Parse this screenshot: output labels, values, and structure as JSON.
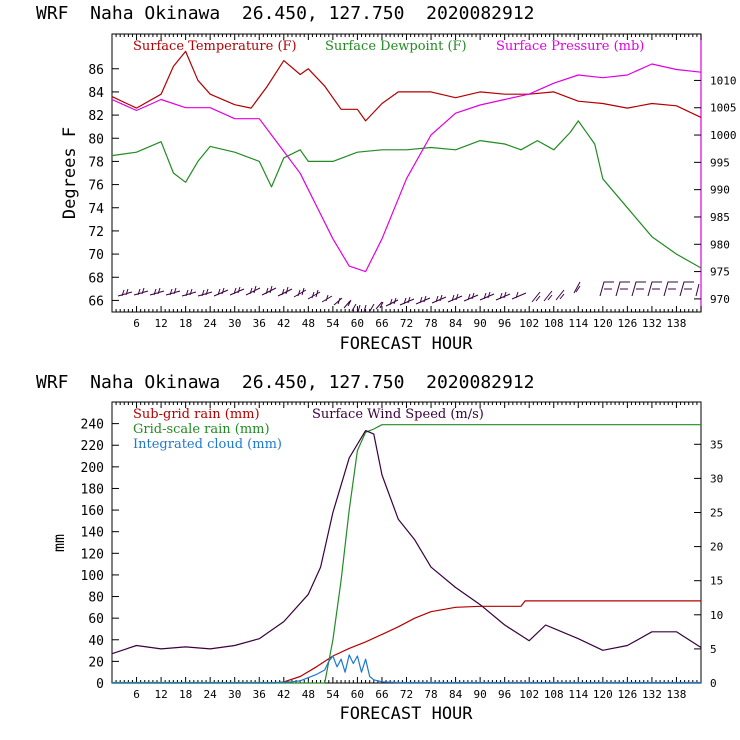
{
  "panels": [
    {
      "header": "WRF  Naha Okinawa  26.450, 127.750  2020082912",
      "chart_data": {
        "type": "line",
        "xlabel": "FORECAST HOUR",
        "ylabel": "Degrees F",
        "x_ticks": [
          "6",
          "12",
          "18",
          "24",
          "30",
          "36",
          "42",
          "48",
          "54",
          "60",
          "66",
          "72",
          "78",
          "84",
          "90",
          "96",
          "102",
          "108",
          "114",
          "120",
          "126",
          "132",
          "138"
        ],
        "xlim": [
          0,
          144
        ],
        "left_axis": {
          "ylim": [
            65,
            89
          ],
          "ticks": [
            "66",
            "68",
            "70",
            "72",
            "74",
            "76",
            "78",
            "80",
            "82",
            "84",
            "86"
          ]
        },
        "right_axis": {
          "ylim": [
            967.6,
            1018.5
          ],
          "label": "mb",
          "ticks": [
            "970",
            "975",
            "980",
            "985",
            "990",
            "995",
            "1000",
            "1005",
            "1010"
          ]
        },
        "series": [
          {
            "name": "Surface Temperature (F)",
            "axis": "left",
            "color": "#b20000",
            "points": [
              [
                0,
                83.6
              ],
              [
                6,
                82.6
              ],
              [
                12,
                83.8
              ],
              [
                15,
                86.2
              ],
              [
                18,
                87.5
              ],
              [
                21,
                85.0
              ],
              [
                24,
                83.8
              ],
              [
                30,
                82.9
              ],
              [
                34,
                82.6
              ],
              [
                38,
                84.5
              ],
              [
                42,
                86.7
              ],
              [
                46,
                85.5
              ],
              [
                48,
                86.0
              ],
              [
                52,
                84.5
              ],
              [
                56,
                82.5
              ],
              [
                60,
                82.5
              ],
              [
                62,
                81.5
              ],
              [
                66,
                83.0
              ],
              [
                70,
                84.0
              ],
              [
                78,
                84.0
              ],
              [
                84,
                83.5
              ],
              [
                90,
                84.0
              ],
              [
                96,
                83.8
              ],
              [
                102,
                83.8
              ],
              [
                108,
                84.0
              ],
              [
                114,
                83.2
              ],
              [
                120,
                83.0
              ],
              [
                126,
                82.6
              ],
              [
                132,
                83.0
              ],
              [
                138,
                82.8
              ],
              [
                144,
                81.8
              ]
            ]
          },
          {
            "name": "Surface Dewpoint (F)",
            "axis": "left",
            "color": "#228b22",
            "points": [
              [
                0,
                78.5
              ],
              [
                6,
                78.8
              ],
              [
                12,
                79.7
              ],
              [
                15,
                77.0
              ],
              [
                18,
                76.2
              ],
              [
                21,
                78.0
              ],
              [
                24,
                79.3
              ],
              [
                30,
                78.8
              ],
              [
                36,
                78.0
              ],
              [
                39,
                75.8
              ],
              [
                42,
                78.3
              ],
              [
                46,
                79.0
              ],
              [
                48,
                78.0
              ],
              [
                54,
                78.0
              ],
              [
                60,
                78.8
              ],
              [
                66,
                79.0
              ],
              [
                72,
                79.0
              ],
              [
                78,
                79.2
              ],
              [
                84,
                79.0
              ],
              [
                90,
                79.8
              ],
              [
                96,
                79.5
              ],
              [
                100,
                79.0
              ],
              [
                104,
                79.8
              ],
              [
                108,
                79.0
              ],
              [
                112,
                80.5
              ],
              [
                114,
                81.5
              ],
              [
                118,
                79.5
              ],
              [
                120,
                76.5
              ],
              [
                126,
                74.0
              ],
              [
                132,
                71.5
              ],
              [
                138,
                70.0
              ],
              [
                144,
                68.8
              ]
            ]
          },
          {
            "name": "Surface Pressure (mb)",
            "axis": "right",
            "color": "#e000e0",
            "points": [
              [
                0,
                1006.5
              ],
              [
                6,
                1004.5
              ],
              [
                12,
                1006.5
              ],
              [
                18,
                1005.0
              ],
              [
                24,
                1005.0
              ],
              [
                30,
                1003.0
              ],
              [
                36,
                1003.0
              ],
              [
                42,
                997.0
              ],
              [
                46,
                993.0
              ],
              [
                50,
                987.0
              ],
              [
                54,
                981.0
              ],
              [
                58,
                976.0
              ],
              [
                62,
                975.0
              ],
              [
                66,
                981.0
              ],
              [
                72,
                992.0
              ],
              [
                78,
                1000.0
              ],
              [
                84,
                1004.0
              ],
              [
                90,
                1005.5
              ],
              [
                96,
                1006.5
              ],
              [
                102,
                1007.5
              ],
              [
                108,
                1009.5
              ],
              [
                114,
                1011.0
              ],
              [
                120,
                1010.5
              ],
              [
                126,
                1011.0
              ],
              [
                132,
                1013.0
              ],
              [
                138,
                1012.0
              ],
              [
                144,
                1011.5
              ]
            ]
          }
        ]
      }
    },
    {
      "header": "WRF  Naha Okinawa  26.450, 127.750  2020082912",
      "chart_data": {
        "type": "line",
        "xlabel": "FORECAST HOUR",
        "ylabel": "mm",
        "x_ticks": [
          "6",
          "12",
          "18",
          "24",
          "30",
          "36",
          "42",
          "48",
          "54",
          "60",
          "66",
          "72",
          "78",
          "84",
          "90",
          "96",
          "102",
          "108",
          "114",
          "120",
          "126",
          "132",
          "138"
        ],
        "xlim": [
          0,
          144
        ],
        "left_axis": {
          "ylim": [
            0,
            260
          ],
          "ticks": [
            "0",
            "20",
            "40",
            "60",
            "80",
            "100",
            "120",
            "140",
            "160",
            "180",
            "200",
            "220",
            "240"
          ]
        },
        "right_axis": {
          "ylim": [
            0,
            41.2
          ],
          "label": "m/s",
          "ticks": [
            "0",
            "5",
            "10",
            "15",
            "20",
            "25",
            "30",
            "35"
          ]
        },
        "series": [
          {
            "name": "Sub-grid rain (mm)",
            "axis": "left",
            "color": "#b20000",
            "points": [
              [
                0,
                0
              ],
              [
                40,
                0
              ],
              [
                42,
                1
              ],
              [
                46,
                6
              ],
              [
                50,
                15
              ],
              [
                54,
                25
              ],
              [
                58,
                32
              ],
              [
                62,
                38
              ],
              [
                66,
                45
              ],
              [
                70,
                52
              ],
              [
                74,
                60
              ],
              [
                78,
                66
              ],
              [
                84,
                70
              ],
              [
                90,
                71
              ],
              [
                96,
                71
              ],
              [
                100,
                71
              ],
              [
                101,
                76
              ],
              [
                144,
                76
              ]
            ]
          },
          {
            "name": "Grid-scale rain (mm)",
            "axis": "left",
            "color": "#228b22",
            "points": [
              [
                0,
                0
              ],
              [
                52,
                0
              ],
              [
                54,
                40
              ],
              [
                56,
                95
              ],
              [
                58,
                160
              ],
              [
                60,
                215
              ],
              [
                62,
                232
              ],
              [
                64,
                235
              ],
              [
                66,
                239
              ],
              [
                70,
                239
              ],
              [
                144,
                239
              ]
            ]
          },
          {
            "name": "Integrated cloud (mm)",
            "axis": "left",
            "color": "#1e78d0",
            "points": [
              [
                0,
                0.5
              ],
              [
                40,
                0.5
              ],
              [
                44,
                1
              ],
              [
                46,
                2
              ],
              [
                50,
                8
              ],
              [
                52,
                12
              ],
              [
                53,
                20
              ],
              [
                54,
                25
              ],
              [
                55,
                15
              ],
              [
                56,
                22
              ],
              [
                57,
                10
              ],
              [
                58,
                26
              ],
              [
                59,
                18
              ],
              [
                60,
                25
              ],
              [
                61,
                10
              ],
              [
                62,
                22
              ],
              [
                63,
                6
              ],
              [
                64,
                3
              ],
              [
                66,
                1
              ],
              [
                70,
                0.5
              ],
              [
                144,
                0.5
              ]
            ]
          },
          {
            "name": "Surface Wind Speed (m/s)",
            "axis": "right",
            "color": "#3a0040",
            "points": [
              [
                0,
                4.3
              ],
              [
                6,
                5.5
              ],
              [
                12,
                5.0
              ],
              [
                18,
                5.3
              ],
              [
                24,
                5.0
              ],
              [
                30,
                5.5
              ],
              [
                36,
                6.5
              ],
              [
                42,
                9.0
              ],
              [
                48,
                13.0
              ],
              [
                51,
                17.0
              ],
              [
                54,
                25.0
              ],
              [
                58,
                33.0
              ],
              [
                62,
                37.0
              ],
              [
                64,
                36.5
              ],
              [
                66,
                30.5
              ],
              [
                70,
                24.0
              ],
              [
                74,
                21.0
              ],
              [
                78,
                17.0
              ],
              [
                84,
                14.0
              ],
              [
                90,
                11.5
              ],
              [
                96,
                8.5
              ],
              [
                102,
                6.2
              ],
              [
                106,
                8.5
              ],
              [
                108,
                8.0
              ],
              [
                114,
                6.5
              ],
              [
                120,
                4.8
              ],
              [
                126,
                5.5
              ],
              [
                132,
                7.5
              ],
              [
                138,
                7.5
              ],
              [
                144,
                5.2
              ]
            ]
          }
        ]
      }
    }
  ]
}
